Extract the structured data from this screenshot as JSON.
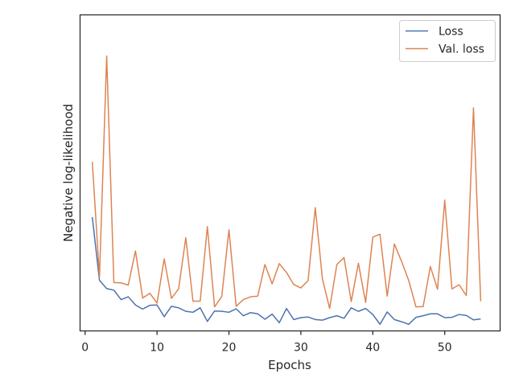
{
  "chart_data": {
    "type": "line",
    "title": "",
    "xlabel": "Epochs",
    "ylabel": "Negative log-likelihood",
    "xlim": [
      -0.7,
      57.7
    ],
    "ylim": [
      0,
      1
    ],
    "xticks": [
      0,
      10,
      20,
      30,
      40,
      50
    ],
    "yticks": [],
    "grid": false,
    "legend_position": "top-right",
    "x": [
      1,
      2,
      3,
      4,
      5,
      6,
      7,
      8,
      9,
      10,
      11,
      12,
      13,
      14,
      15,
      16,
      17,
      18,
      19,
      20,
      21,
      22,
      23,
      24,
      25,
      26,
      27,
      28,
      29,
      30,
      31,
      32,
      33,
      34,
      35,
      36,
      37,
      38,
      39,
      40,
      41,
      42,
      43,
      44,
      45,
      46,
      47,
      48,
      49,
      50,
      51,
      52,
      53,
      54,
      55
    ],
    "series": [
      {
        "name": "Loss",
        "color": "#4c72b0",
        "values": [
          0.36,
          0.16,
          0.134,
          0.129,
          0.099,
          0.108,
          0.082,
          0.069,
          0.081,
          0.082,
          0.045,
          0.078,
          0.073,
          0.062,
          0.059,
          0.073,
          0.03,
          0.063,
          0.062,
          0.059,
          0.07,
          0.048,
          0.058,
          0.054,
          0.037,
          0.053,
          0.026,
          0.071,
          0.036,
          0.042,
          0.044,
          0.036,
          0.034,
          0.042,
          0.048,
          0.04,
          0.073,
          0.062,
          0.071,
          0.052,
          0.021,
          0.06,
          0.036,
          0.029,
          0.021,
          0.043,
          0.048,
          0.054,
          0.054,
          0.042,
          0.043,
          0.052,
          0.049,
          0.035,
          0.038
        ]
      },
      {
        "name": "Val. loss",
        "color": "#dd8452",
        "values": [
          0.535,
          0.17,
          0.87,
          0.153,
          0.152,
          0.145,
          0.253,
          0.104,
          0.119,
          0.088,
          0.228,
          0.103,
          0.133,
          0.295,
          0.094,
          0.094,
          0.33,
          0.076,
          0.109,
          0.32,
          0.078,
          0.099,
          0.108,
          0.11,
          0.21,
          0.149,
          0.213,
          0.185,
          0.147,
          0.136,
          0.159,
          0.39,
          0.164,
          0.071,
          0.21,
          0.232,
          0.093,
          0.214,
          0.09,
          0.297,
          0.306,
          0.11,
          0.275,
          0.22,
          0.159,
          0.076,
          0.077,
          0.204,
          0.132,
          0.414,
          0.133,
          0.146,
          0.112,
          0.706,
          0.094
        ]
      }
    ]
  }
}
